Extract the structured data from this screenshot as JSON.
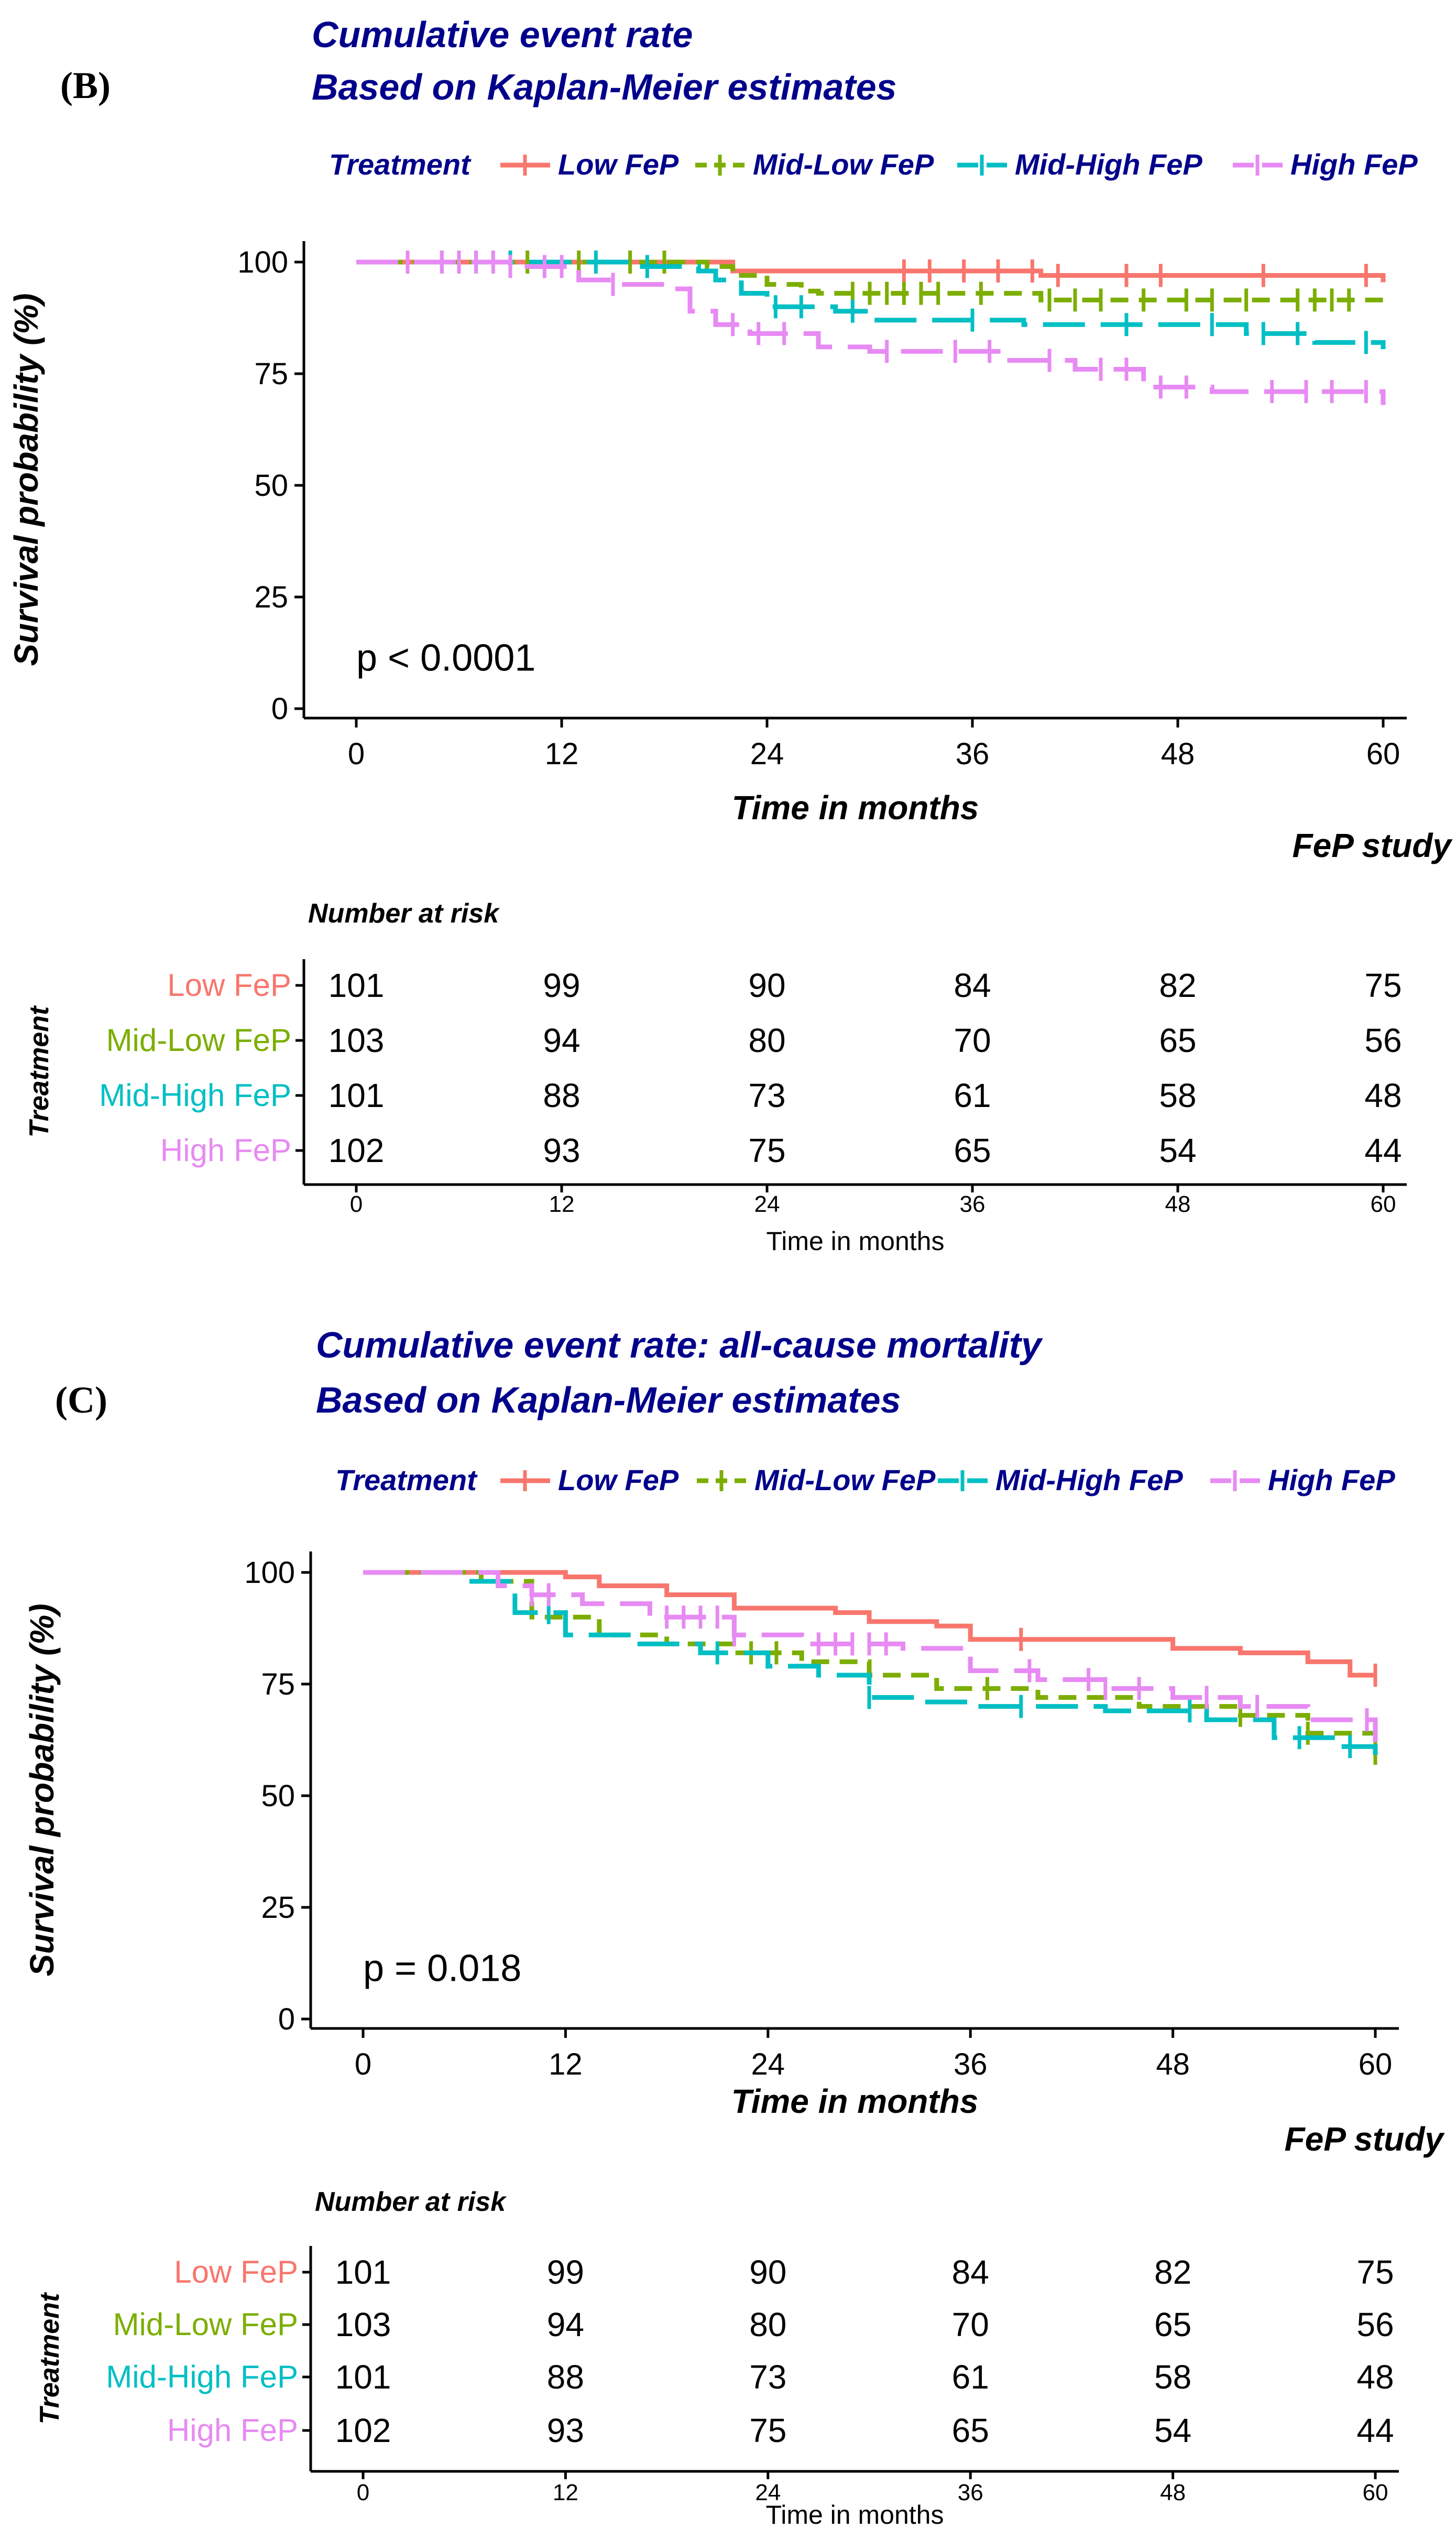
{
  "chart_data": [
    {
      "type": "line",
      "panel_label": "(B)",
      "title": "Cumulative event rate",
      "subtitle": "Based on Kaplan-Meier estimates",
      "legend_title": "Treatment",
      "legend_placement": "top",
      "xlabel": "Time in months",
      "ylabel": "Survival probability (%)",
      "caption": "FeP study",
      "annotation": "p < 0.0001",
      "xlim": [
        0,
        60
      ],
      "ylim": [
        0,
        100
      ],
      "xticks": [
        0,
        12,
        24,
        36,
        48,
        60
      ],
      "yticks": [
        0,
        25,
        50,
        75,
        100
      ],
      "series": [
        {
          "name": "Low FeP",
          "color": "#F8766D",
          "dash": "solid",
          "x": [
            0,
            20,
            22,
            40,
            60
          ],
          "y": [
            100,
            100,
            98,
            97,
            95.5
          ],
          "censors": [
            32,
            33.5,
            35.5,
            37.5,
            39.5,
            41,
            45,
            47,
            53,
            59
          ]
        },
        {
          "name": "Mid-Low FeP",
          "color": "#7CAE00",
          "dash": "short",
          "x": [
            0,
            19,
            20.5,
            22,
            24,
            26,
            27,
            40,
            60
          ],
          "y": [
            100,
            100,
            99,
            97,
            95,
            93.5,
            93,
            91.5,
            89.5
          ],
          "censors": [
            10,
            13,
            16,
            18,
            29,
            30,
            31,
            32,
            33,
            34,
            36.5,
            40.5,
            42,
            43.5,
            46,
            48.5,
            50,
            52,
            55,
            56,
            57,
            58
          ]
        },
        {
          "name": "Mid-High FeP",
          "color": "#00BFC4",
          "dash": "long",
          "x": [
            0,
            10,
            16,
            20,
            21,
            22.5,
            24,
            28,
            30,
            37,
            39,
            49,
            52,
            56,
            60
          ],
          "y": [
            100,
            100,
            99,
            98,
            96,
            93,
            90,
            89,
            87,
            87,
            86,
            86,
            84,
            82,
            80.5
          ],
          "censors": [
            5,
            7,
            9,
            14,
            17,
            24.5,
            26,
            29,
            36,
            45,
            50,
            53,
            55,
            59
          ]
        },
        {
          "name": "High FeP",
          "color": "#E78AF3",
          "dash": "long",
          "x": [
            0,
            9,
            13,
            15,
            18,
            19.5,
            21,
            23,
            27,
            30,
            38,
            42,
            46,
            50,
            56,
            60
          ],
          "y": [
            100,
            99,
            96,
            95,
            94,
            89,
            86,
            84,
            81,
            80,
            78,
            76,
            72,
            71,
            71,
            68
          ],
          "censors": [
            3,
            5,
            6,
            7,
            8,
            9,
            11,
            12,
            15,
            22,
            23.5,
            25,
            31,
            35,
            37,
            40.5,
            43.5,
            45,
            47,
            48.5,
            53.5,
            55.5,
            57,
            59
          ]
        }
      ],
      "risk_table": {
        "title": "Number at risk",
        "ylabel": "Treatment",
        "xlabel": "Time in months",
        "times": [
          0,
          12,
          24,
          36,
          48,
          60
        ],
        "rows": [
          {
            "label": "Low FeP",
            "values": [
              101,
              99,
              90,
              84,
              82,
              75
            ]
          },
          {
            "label": "Mid-Low FeP",
            "values": [
              103,
              94,
              80,
              70,
              65,
              56
            ]
          },
          {
            "label": "Mid-High FeP",
            "values": [
              101,
              88,
              73,
              61,
              58,
              48
            ]
          },
          {
            "label": "High FeP",
            "values": [
              102,
              93,
              75,
              65,
              54,
              44
            ]
          }
        ]
      }
    },
    {
      "type": "line",
      "panel_label": "(C)",
      "title": "Cumulative event rate: all-cause mortality",
      "subtitle": "Based on Kaplan-Meier estimates",
      "legend_title": "Treatment",
      "legend_placement": "top",
      "xlabel": "Time in months",
      "ylabel": "Survival probability (%)",
      "caption": "FeP study",
      "annotation": "p = 0.018",
      "xlim": [
        0,
        60
      ],
      "ylim": [
        0,
        100
      ],
      "xticks": [
        0,
        12,
        24,
        36,
        48,
        60
      ],
      "yticks": [
        0,
        25,
        50,
        75,
        100
      ],
      "series": [
        {
          "name": "Low FeP",
          "color": "#F8766D",
          "dash": "solid",
          "x": [
            0,
            12,
            14,
            18,
            22,
            28,
            30,
            34,
            36,
            48,
            52,
            56,
            58.5,
            60
          ],
          "y": [
            100,
            99,
            97,
            95,
            92,
            91,
            89,
            88,
            85,
            83,
            82,
            80,
            77,
            77
          ],
          "censors": [
            39,
            60
          ]
        },
        {
          "name": "Mid-Low FeP",
          "color": "#7CAE00",
          "dash": "short",
          "x": [
            0,
            7,
            10,
            14,
            18,
            22,
            26,
            30,
            34,
            40,
            46,
            52,
            56,
            60
          ],
          "y": [
            100,
            98,
            90,
            86,
            84,
            82,
            80,
            77,
            74,
            72,
            70,
            68,
            64,
            59.5
          ],
          "censors": [
            23,
            24.5,
            37,
            52,
            56,
            60
          ]
        },
        {
          "name": "Mid-High FeP",
          "color": "#00BFC4",
          "dash": "long",
          "x": [
            0,
            6,
            9,
            12,
            16,
            20,
            24,
            27,
            30,
            33,
            36,
            44,
            50,
            54,
            58,
            60
          ],
          "y": [
            100,
            98,
            91,
            86,
            84,
            82,
            79,
            77,
            72,
            71,
            70,
            69,
            67,
            63,
            61,
            58
          ],
          "censors": [
            11,
            21,
            30,
            39,
            49,
            55.5,
            58.5
          ]
        },
        {
          "name": "High FeP",
          "color": "#E78AF3",
          "dash": "long",
          "x": [
            0,
            8,
            10,
            13,
            17,
            22,
            26,
            32,
            36,
            40,
            44,
            48,
            52,
            56,
            60
          ],
          "y": [
            100,
            97,
            95,
            93,
            90,
            86,
            84,
            83,
            78,
            76,
            74,
            72,
            70,
            67,
            62
          ],
          "censors": [
            10,
            11,
            18,
            19,
            20,
            21,
            22,
            27,
            28,
            29,
            30,
            31,
            39.5,
            43,
            44,
            46,
            50,
            53,
            59.5
          ]
        }
      ],
      "risk_table": {
        "title": "Number at risk",
        "ylabel": "Treatment",
        "xlabel": "Time in months",
        "times": [
          0,
          12,
          24,
          36,
          48,
          60
        ],
        "rows": [
          {
            "label": "Low FeP",
            "values": [
              101,
              99,
              90,
              84,
              82,
              75
            ]
          },
          {
            "label": "Mid-Low FeP",
            "values": [
              103,
              94,
              80,
              70,
              65,
              56
            ]
          },
          {
            "label": "Mid-High FeP",
            "values": [
              101,
              88,
              73,
              61,
              58,
              48
            ]
          },
          {
            "label": "High FeP",
            "values": [
              102,
              93,
              75,
              65,
              54,
              44
            ]
          }
        ]
      }
    }
  ]
}
